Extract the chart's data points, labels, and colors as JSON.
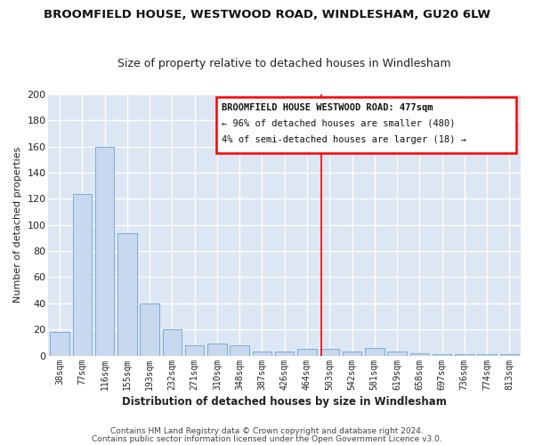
{
  "title": "BROOMFIELD HOUSE, WESTWOOD ROAD, WINDLESHAM, GU20 6LW",
  "subtitle": "Size of property relative to detached houses in Windlesham",
  "xlabel": "Distribution of detached houses by size in Windlesham",
  "ylabel": "Number of detached properties",
  "categories": [
    "38sqm",
    "77sqm",
    "116sqm",
    "155sqm",
    "193sqm",
    "232sqm",
    "271sqm",
    "310sqm",
    "348sqm",
    "387sqm",
    "426sqm",
    "464sqm",
    "503sqm",
    "542sqm",
    "581sqm",
    "619sqm",
    "658sqm",
    "697sqm",
    "736sqm",
    "774sqm",
    "813sqm"
  ],
  "values": [
    18,
    124,
    160,
    94,
    40,
    20,
    8,
    9,
    8,
    3,
    3,
    5,
    5,
    3,
    6,
    3,
    2,
    1,
    1,
    1,
    1
  ],
  "bar_color": "#c8d8ee",
  "bar_edge_color": "#7aadd4",
  "plot_bg_color": "#dde6f3",
  "fig_bg_color": "#ffffff",
  "grid_color": "#ffffff",
  "red_line_x": 11.65,
  "annotation_line1": "BROOMFIELD HOUSE WESTWOOD ROAD: 477sqm",
  "annotation_line2": "← 96% of detached houses are smaller (480)",
  "annotation_line3": "4% of semi-detached houses are larger (18) →",
  "footer1": "Contains HM Land Registry data © Crown copyright and database right 2024.",
  "footer2": "Contains public sector information licensed under the Open Government Licence v3.0.",
  "ylim": [
    0,
    200
  ],
  "yticks": [
    0,
    20,
    40,
    60,
    80,
    100,
    120,
    140,
    160,
    180,
    200
  ]
}
